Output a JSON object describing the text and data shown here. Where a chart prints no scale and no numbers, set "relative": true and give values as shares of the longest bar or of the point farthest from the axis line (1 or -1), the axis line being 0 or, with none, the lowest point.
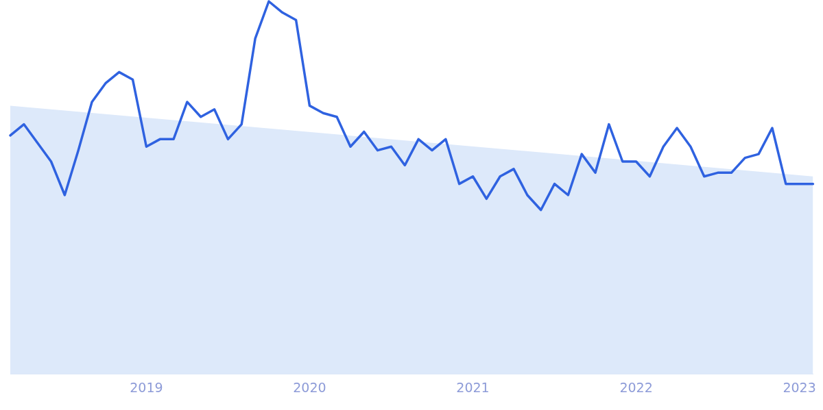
{
  "chart_data": {
    "type": "line",
    "relative": true,
    "xlim": [
      "2018-03",
      "2023-02"
    ],
    "xticks": [
      "2019",
      "2020",
      "2021",
      "2022",
      "2023"
    ],
    "x": [
      "2018-03",
      "2018-04",
      "2018-05",
      "2018-06",
      "2018-07",
      "2018-08",
      "2018-09",
      "2018-10",
      "2018-11",
      "2018-12",
      "2019-01",
      "2019-02",
      "2019-03",
      "2019-04",
      "2019-05",
      "2019-06",
      "2019-07",
      "2019-08",
      "2019-09",
      "2019-10",
      "2019-11",
      "2019-12",
      "2020-01",
      "2020-02",
      "2020-03",
      "2020-04",
      "2020-05",
      "2020-06",
      "2020-07",
      "2020-08",
      "2020-09",
      "2020-10",
      "2020-11",
      "2020-12",
      "2021-01",
      "2021-02",
      "2021-03",
      "2021-04",
      "2021-05",
      "2021-06",
      "2021-07",
      "2021-08",
      "2021-09",
      "2021-10",
      "2021-11",
      "2021-12",
      "2022-01",
      "2022-02",
      "2022-03",
      "2022-04",
      "2022-05",
      "2022-06",
      "2022-07",
      "2022-08",
      "2022-09",
      "2022-10",
      "2022-11",
      "2022-12",
      "2023-01",
      "2023-02"
    ],
    "series": [
      {
        "color": "#2f62e0",
        "values": [
          0.64,
          0.67,
          0.62,
          0.57,
          0.48,
          0.6,
          0.73,
          0.78,
          0.81,
          0.79,
          0.61,
          0.63,
          0.63,
          0.73,
          0.69,
          0.71,
          0.63,
          0.67,
          0.9,
          1.0,
          0.97,
          0.95,
          0.72,
          0.7,
          0.69,
          0.61,
          0.65,
          0.6,
          0.61,
          0.56,
          0.63,
          0.6,
          0.63,
          0.51,
          0.53,
          0.47,
          0.53,
          0.55,
          0.48,
          0.44,
          0.51,
          0.48,
          0.59,
          0.54,
          0.67,
          0.57,
          0.57,
          0.53,
          0.61,
          0.66,
          0.61,
          0.53,
          0.54,
          0.54,
          0.58,
          0.59,
          0.66,
          0.51,
          0.51,
          0.51
        ]
      },
      {
        "type": "area",
        "color": "#dde9fa",
        "x": [
          "2018-03",
          "2023-02"
        ],
        "values": [
          0.72,
          0.53
        ]
      }
    ]
  }
}
